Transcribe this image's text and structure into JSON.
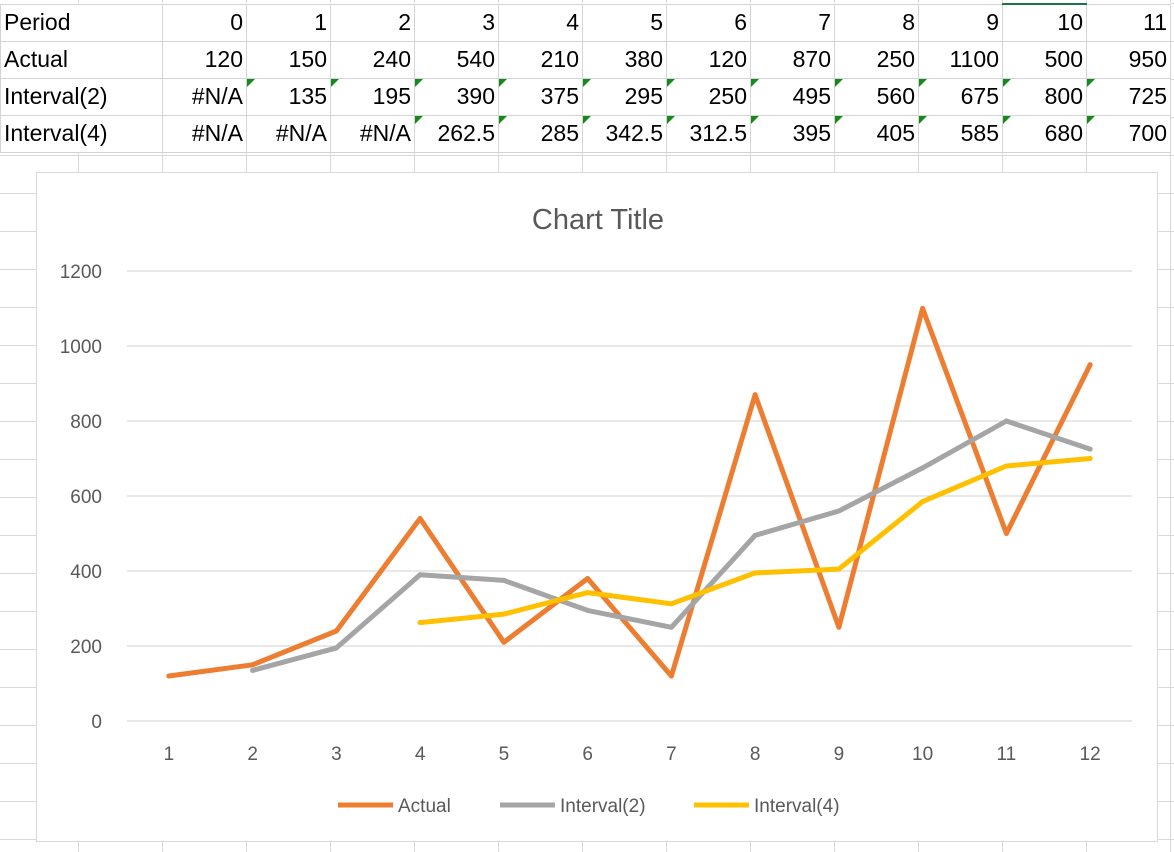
{
  "sheet": {
    "rows": [
      {
        "label": "Period",
        "cells": [
          "0",
          "1",
          "2",
          "3",
          "4",
          "5",
          "6",
          "7",
          "8",
          "9",
          "10",
          "11"
        ],
        "flags": [
          false,
          false,
          false,
          false,
          false,
          false,
          false,
          false,
          false,
          false,
          false,
          false
        ]
      },
      {
        "label": "Actual",
        "cells": [
          "120",
          "150",
          "240",
          "540",
          "210",
          "380",
          "120",
          "870",
          "250",
          "1100",
          "500",
          "950"
        ],
        "flags": [
          false,
          false,
          false,
          false,
          false,
          false,
          false,
          false,
          false,
          false,
          false,
          false
        ]
      },
      {
        "label": "Interval(2)",
        "cells": [
          "#N/A",
          "135",
          "195",
          "390",
          "375",
          "295",
          "250",
          "495",
          "560",
          "675",
          "800",
          "725"
        ],
        "flags": [
          false,
          true,
          true,
          true,
          true,
          true,
          true,
          true,
          true,
          true,
          true,
          true
        ]
      },
      {
        "label": "Interval(4)",
        "cells": [
          "#N/A",
          "#N/A",
          "#N/A",
          "262.5",
          "285",
          "342.5",
          "312.5",
          "395",
          "405",
          "585",
          "680",
          "700"
        ],
        "flags": [
          false,
          false,
          false,
          true,
          true,
          true,
          true,
          true,
          true,
          true,
          true,
          true
        ]
      }
    ]
  },
  "chart_data": {
    "type": "line",
    "title": "Chart Title",
    "xlabel": "",
    "ylabel": "",
    "categories": [
      "1",
      "2",
      "3",
      "4",
      "5",
      "6",
      "7",
      "8",
      "9",
      "10",
      "11",
      "12"
    ],
    "ylim": [
      0,
      1200
    ],
    "yticks": [
      0,
      200,
      400,
      600,
      800,
      1000,
      1200
    ],
    "grid": true,
    "legend_position": "bottom",
    "series": [
      {
        "name": "Actual",
        "color": "#ED7D31",
        "values": [
          120,
          150,
          240,
          540,
          210,
          380,
          120,
          870,
          250,
          1100,
          500,
          950
        ]
      },
      {
        "name": "Interval(2)",
        "color": "#A5A5A5",
        "values": [
          null,
          135,
          195,
          390,
          375,
          295,
          250,
          495,
          560,
          675,
          800,
          725
        ]
      },
      {
        "name": "Interval(4)",
        "color": "#FFC000",
        "values": [
          null,
          null,
          null,
          262.5,
          285,
          342.5,
          312.5,
          395,
          405,
          585,
          680,
          700
        ]
      }
    ]
  }
}
